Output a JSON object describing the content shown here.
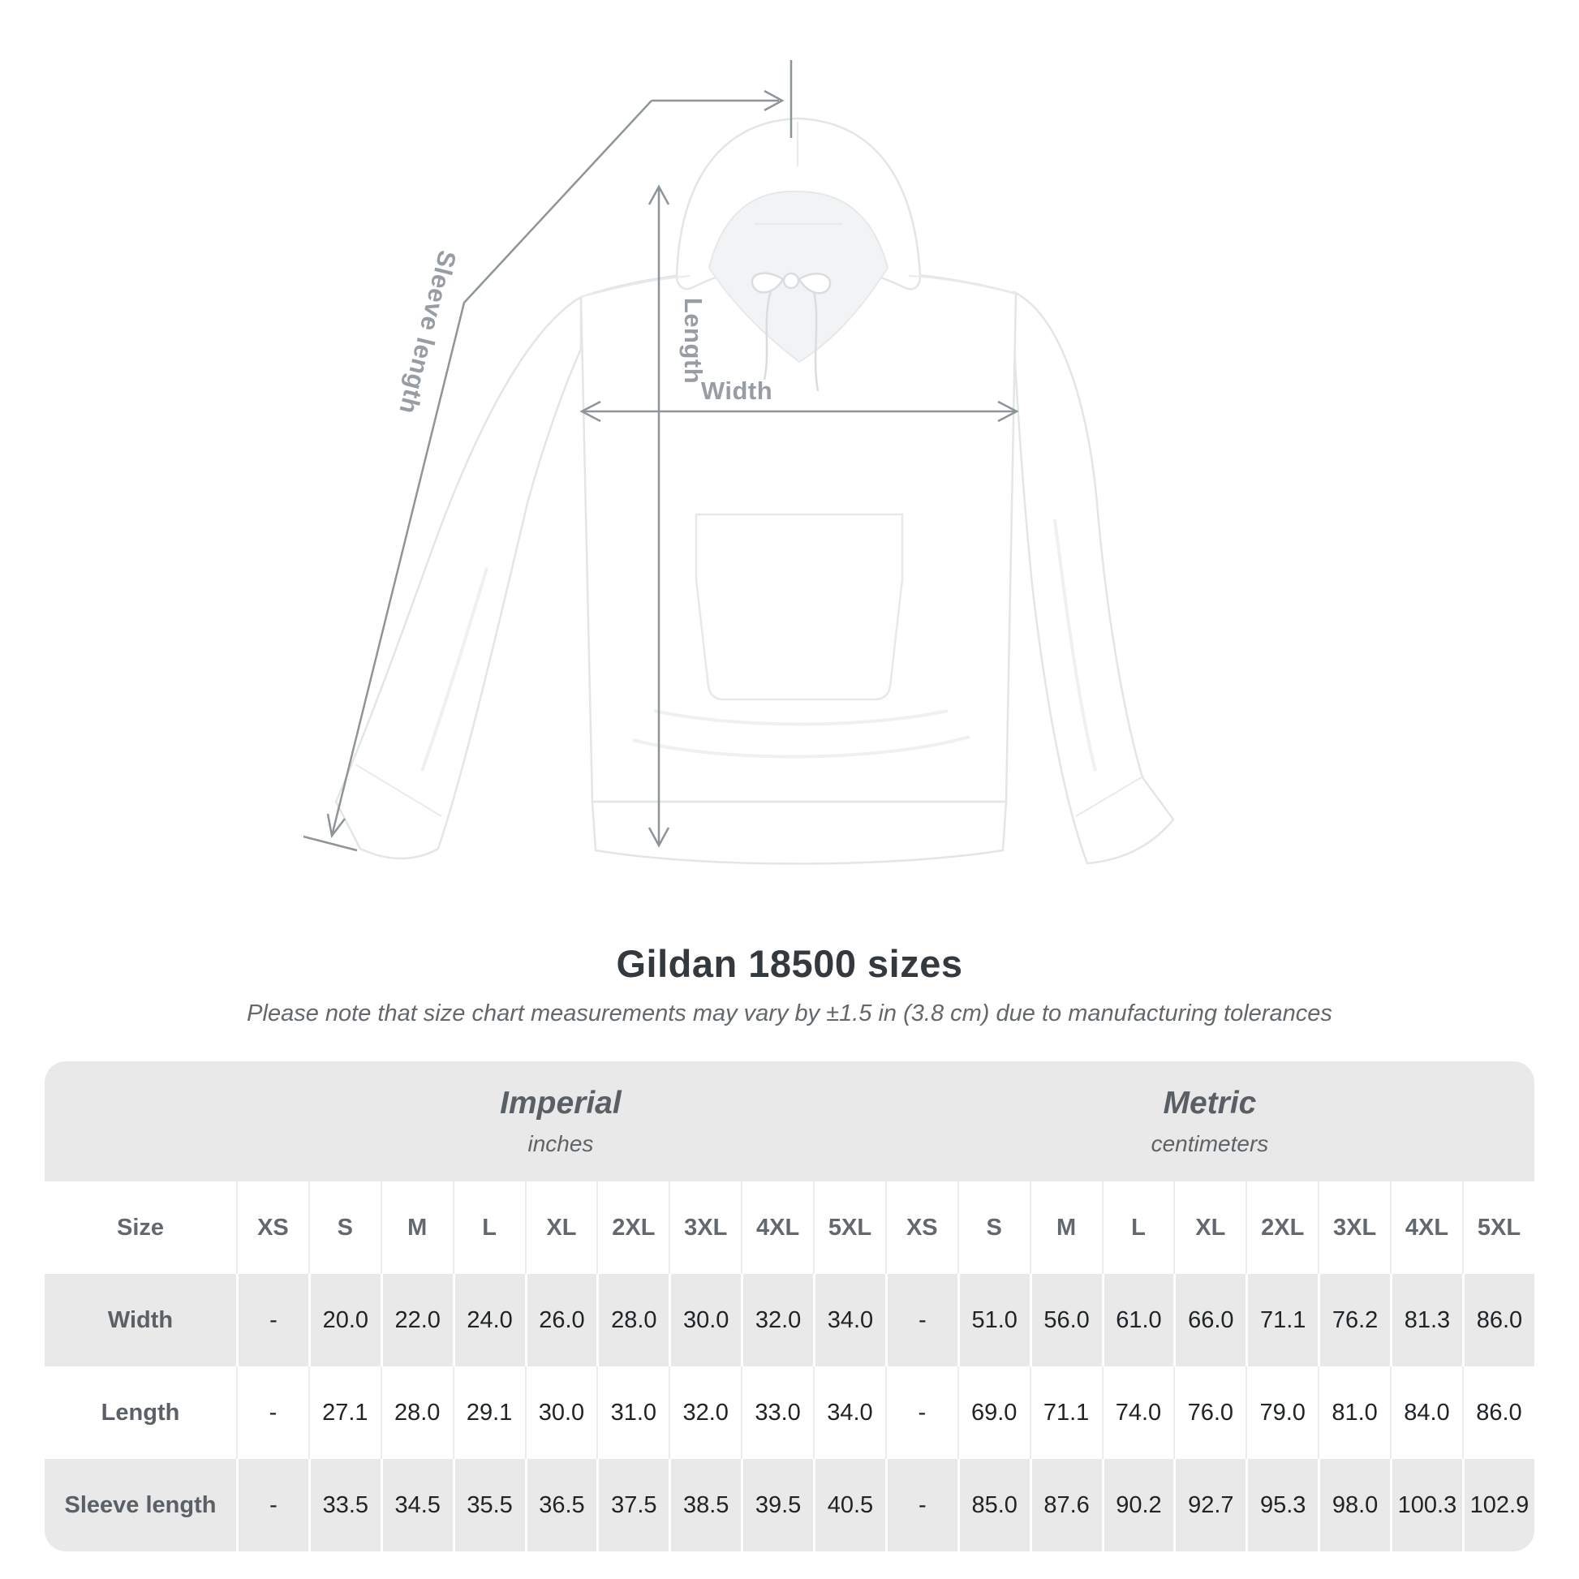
{
  "figure": {
    "width_label": "Width",
    "length_label": "Length",
    "sleeve_length_label": "Sleeve length"
  },
  "title": "Gildan 18500 sizes",
  "subtitle": "Please note that size chart measurements may vary by ±1.5 in (3.8 cm) due to manufacturing tolerances",
  "table": {
    "unit_groups": [
      {
        "label": "Imperial",
        "sublabel": "inches"
      },
      {
        "label": "Metric",
        "sublabel": "centimeters"
      }
    ],
    "size_column_header": "Size",
    "sizes": [
      "XS",
      "S",
      "M",
      "L",
      "XL",
      "2XL",
      "3XL",
      "4XL",
      "5XL"
    ],
    "rows": [
      {
        "label": "Width",
        "imperial": [
          "-",
          "20.0",
          "22.0",
          "24.0",
          "26.0",
          "28.0",
          "30.0",
          "32.0",
          "34.0"
        ],
        "metric": [
          "-",
          "51.0",
          "56.0",
          "61.0",
          "66.0",
          "71.1",
          "76.2",
          "81.3",
          "86.0"
        ]
      },
      {
        "label": "Length",
        "imperial": [
          "-",
          "27.1",
          "28.0",
          "29.1",
          "30.0",
          "31.0",
          "32.0",
          "33.0",
          "34.0"
        ],
        "metric": [
          "-",
          "69.0",
          "71.1",
          "74.0",
          "76.0",
          "79.0",
          "81.0",
          "84.0",
          "86.0"
        ]
      },
      {
        "label": "Sleeve length",
        "imperial": [
          "-",
          "33.5",
          "34.5",
          "35.5",
          "36.5",
          "37.5",
          "38.5",
          "39.5",
          "40.5"
        ],
        "metric": [
          "-",
          "85.0",
          "87.6",
          "90.2",
          "92.7",
          "95.3",
          "98.0",
          "100.3",
          "102.9"
        ]
      }
    ]
  },
  "colors": {
    "row_gray": "#e9e9e9",
    "annotation_gray": "#8e9599",
    "text_dark": "#202427",
    "label_gray": "#5a6065"
  }
}
